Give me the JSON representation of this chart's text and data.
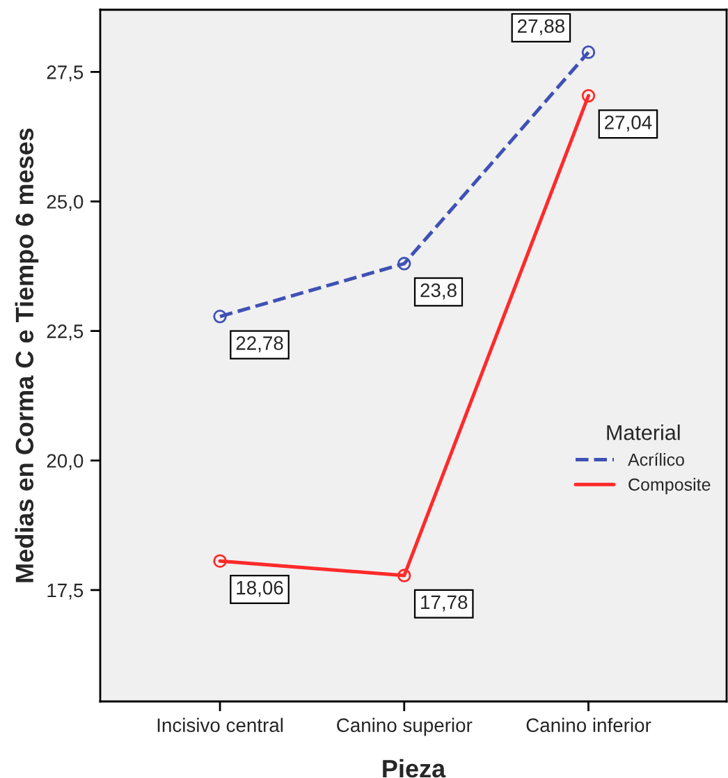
{
  "chart_data": {
    "type": "line",
    "xlabel": "Pieza",
    "ylabel": "Medias en Corma C e Tiempo 6 meses",
    "legend_title": "Material",
    "categories": [
      "Incisivo central",
      "Canino superior",
      "Canino inferior"
    ],
    "series": [
      {
        "name": "Acrílico",
        "color": "#3f51b5",
        "line_style": "dashed",
        "values": [
          22.78,
          23.8,
          27.88
        ],
        "value_labels": [
          "22,78",
          "23,8",
          "27,88"
        ]
      },
      {
        "name": "Composite",
        "color": "#ff2a2a",
        "line_style": "solid",
        "values": [
          18.06,
          17.78,
          27.04
        ],
        "value_labels": [
          "18,06",
          "17,78",
          "27,04"
        ]
      }
    ],
    "ylim": [
      15.35,
      28.7
    ],
    "yticks": [
      {
        "value": 17.5,
        "label": "17,5"
      },
      {
        "value": 20.0,
        "label": "20,0"
      },
      {
        "value": 22.5,
        "label": "22,5"
      },
      {
        "value": 25.0,
        "label": "25,0"
      },
      {
        "value": 27.5,
        "label": "27,5"
      }
    ],
    "marker": "circle",
    "legend": "right",
    "grid": false
  }
}
